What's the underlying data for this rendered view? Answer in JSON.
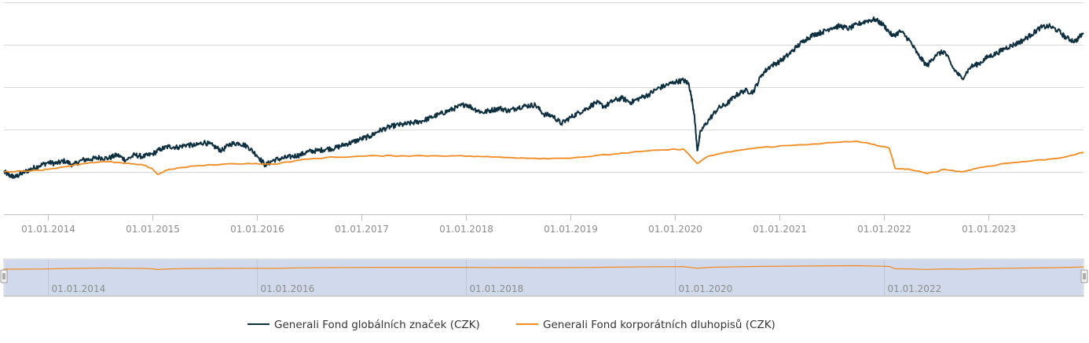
{
  "chart_data": {
    "type": "line",
    "title": "",
    "xlabel": "",
    "ylabel": "",
    "x_ticks": [
      "01.01.2014",
      "01.01.2015",
      "01.01.2016",
      "01.01.2017",
      "01.01.2018",
      "01.01.2019",
      "01.01.2020",
      "01.01.2021",
      "01.01.2022",
      "01.01.2023"
    ],
    "navigator_ticks": [
      "01.01.2014",
      "01.01.2016",
      "01.01.2018",
      "01.01.2020",
      "01.01.2022"
    ],
    "x_range": [
      "2013-08-01",
      "2023-11-30"
    ],
    "ylim": [
      -50,
      200
    ],
    "y_gridlines": [
      -50,
      0,
      50,
      100,
      150,
      200
    ],
    "y_tick_labels_visible": false,
    "legend_position": "bottom-center",
    "series": [
      {
        "name": "Generali Fond globálních značek (CZK)",
        "color": "#0d2f3f",
        "points": [
          [
            "2013-08-01",
            0
          ],
          [
            "2013-08-20",
            -4
          ],
          [
            "2013-09-10",
            -6
          ],
          [
            "2013-10-01",
            -2
          ],
          [
            "2013-11-01",
            3
          ],
          [
            "2013-12-01",
            7
          ],
          [
            "2014-01-01",
            11
          ],
          [
            "2014-02-01",
            10
          ],
          [
            "2014-03-01",
            13
          ],
          [
            "2014-04-01",
            8
          ],
          [
            "2014-05-01",
            14
          ],
          [
            "2014-06-01",
            15
          ],
          [
            "2014-07-01",
            17
          ],
          [
            "2014-08-01",
            16
          ],
          [
            "2014-09-01",
            20
          ],
          [
            "2014-10-01",
            14
          ],
          [
            "2014-11-01",
            20
          ],
          [
            "2014-12-01",
            18
          ],
          [
            "2015-01-01",
            21
          ],
          [
            "2015-02-01",
            27
          ],
          [
            "2015-03-01",
            30
          ],
          [
            "2015-04-01",
            29
          ],
          [
            "2015-05-01",
            32
          ],
          [
            "2015-06-01",
            31
          ],
          [
            "2015-07-01",
            35
          ],
          [
            "2015-08-01",
            31
          ],
          [
            "2015-09-01",
            25
          ],
          [
            "2015-10-01",
            33
          ],
          [
            "2015-11-01",
            34
          ],
          [
            "2015-12-01",
            30
          ],
          [
            "2016-01-01",
            20
          ],
          [
            "2016-02-01",
            8
          ],
          [
            "2016-03-01",
            14
          ],
          [
            "2016-04-01",
            16
          ],
          [
            "2016-05-01",
            18
          ],
          [
            "2016-06-01",
            20
          ],
          [
            "2016-07-01",
            24
          ],
          [
            "2016-08-01",
            25
          ],
          [
            "2016-09-01",
            27
          ],
          [
            "2016-10-01",
            28
          ],
          [
            "2016-11-01",
            32
          ],
          [
            "2016-12-01",
            35
          ],
          [
            "2017-01-01",
            39
          ],
          [
            "2017-02-01",
            42
          ],
          [
            "2017-03-01",
            48
          ],
          [
            "2017-04-01",
            52
          ],
          [
            "2017-05-01",
            55
          ],
          [
            "2017-06-01",
            56
          ],
          [
            "2017-07-01",
            58
          ],
          [
            "2017-08-01",
            60
          ],
          [
            "2017-09-01",
            64
          ],
          [
            "2017-10-01",
            68
          ],
          [
            "2017-11-01",
            72
          ],
          [
            "2017-12-01",
            76
          ],
          [
            "2018-01-01",
            80
          ],
          [
            "2018-02-01",
            74
          ],
          [
            "2018-03-01",
            70
          ],
          [
            "2018-04-01",
            73
          ],
          [
            "2018-05-01",
            75
          ],
          [
            "2018-06-01",
            72
          ],
          [
            "2018-07-01",
            76
          ],
          [
            "2018-08-01",
            78
          ],
          [
            "2018-09-01",
            79
          ],
          [
            "2018-10-01",
            68
          ],
          [
            "2018-11-01",
            66
          ],
          [
            "2018-12-01",
            57
          ],
          [
            "2019-01-01",
            64
          ],
          [
            "2019-02-01",
            70
          ],
          [
            "2019-03-01",
            75
          ],
          [
            "2019-04-01",
            82
          ],
          [
            "2019-05-01",
            77
          ],
          [
            "2019-06-01",
            84
          ],
          [
            "2019-07-01",
            87
          ],
          [
            "2019-08-01",
            82
          ],
          [
            "2019-09-01",
            87
          ],
          [
            "2019-10-01",
            91
          ],
          [
            "2019-11-01",
            98
          ],
          [
            "2019-12-01",
            102
          ],
          [
            "2020-01-01",
            106
          ],
          [
            "2020-02-01",
            108
          ],
          [
            "2020-02-20",
            104
          ],
          [
            "2020-03-10",
            68
          ],
          [
            "2020-03-20",
            25
          ],
          [
            "2020-04-01",
            48
          ],
          [
            "2020-05-01",
            62
          ],
          [
            "2020-06-01",
            75
          ],
          [
            "2020-07-01",
            80
          ],
          [
            "2020-08-01",
            90
          ],
          [
            "2020-09-01",
            96
          ],
          [
            "2020-10-01",
            94
          ],
          [
            "2020-11-01",
            115
          ],
          [
            "2020-12-01",
            125
          ],
          [
            "2021-01-01",
            130
          ],
          [
            "2021-02-01",
            138
          ],
          [
            "2021-03-01",
            147
          ],
          [
            "2021-04-01",
            156
          ],
          [
            "2021-05-01",
            162
          ],
          [
            "2021-06-01",
            165
          ],
          [
            "2021-07-01",
            170
          ],
          [
            "2021-08-01",
            172
          ],
          [
            "2021-09-01",
            169
          ],
          [
            "2021-10-01",
            174
          ],
          [
            "2021-11-01",
            178
          ],
          [
            "2021-12-01",
            180
          ],
          [
            "2022-01-01",
            173
          ],
          [
            "2022-02-01",
            160
          ],
          [
            "2022-03-01",
            166
          ],
          [
            "2022-04-01",
            155
          ],
          [
            "2022-05-01",
            138
          ],
          [
            "2022-06-01",
            125
          ],
          [
            "2022-07-01",
            138
          ],
          [
            "2022-08-01",
            142
          ],
          [
            "2022-09-01",
            122
          ],
          [
            "2022-10-01",
            110
          ],
          [
            "2022-11-01",
            124
          ],
          [
            "2022-12-01",
            128
          ],
          [
            "2023-01-01",
            136
          ],
          [
            "2023-02-01",
            140
          ],
          [
            "2023-03-01",
            146
          ],
          [
            "2023-04-01",
            150
          ],
          [
            "2023-05-01",
            155
          ],
          [
            "2023-06-01",
            162
          ],
          [
            "2023-07-01",
            170
          ],
          [
            "2023-08-01",
            172
          ],
          [
            "2023-09-01",
            167
          ],
          [
            "2023-10-01",
            158
          ],
          [
            "2023-11-01",
            154
          ],
          [
            "2023-11-30",
            164
          ]
        ]
      },
      {
        "name": "Generali Fond korporátních dluhopisů (CZK)",
        "color": "#f28a1e",
        "points": [
          [
            "2013-08-01",
            0
          ],
          [
            "2013-10-01",
            1
          ],
          [
            "2013-12-01",
            2
          ],
          [
            "2014-01-01",
            3
          ],
          [
            "2014-04-01",
            8
          ],
          [
            "2014-06-01",
            11
          ],
          [
            "2014-08-01",
            12
          ],
          [
            "2014-10-01",
            10
          ],
          [
            "2014-12-01",
            8
          ],
          [
            "2015-01-01",
            4
          ],
          [
            "2015-01-20",
            -3
          ],
          [
            "2015-03-01",
            3
          ],
          [
            "2015-06-01",
            7
          ],
          [
            "2015-09-01",
            9
          ],
          [
            "2015-12-01",
            10
          ],
          [
            "2016-03-01",
            9
          ],
          [
            "2016-06-01",
            14
          ],
          [
            "2016-09-01",
            17
          ],
          [
            "2016-12-01",
            18
          ],
          [
            "2017-03-01",
            19
          ],
          [
            "2017-06-01",
            19
          ],
          [
            "2017-09-01",
            19
          ],
          [
            "2017-12-01",
            19
          ],
          [
            "2018-03-01",
            18
          ],
          [
            "2018-06-01",
            17
          ],
          [
            "2018-09-01",
            16
          ],
          [
            "2018-12-01",
            16
          ],
          [
            "2019-03-01",
            18
          ],
          [
            "2019-06-01",
            21
          ],
          [
            "2019-09-01",
            24
          ],
          [
            "2019-12-01",
            26
          ],
          [
            "2020-02-01",
            27
          ],
          [
            "2020-03-20",
            10
          ],
          [
            "2020-05-01",
            19
          ],
          [
            "2020-08-01",
            25
          ],
          [
            "2020-11-01",
            29
          ],
          [
            "2021-02-01",
            31
          ],
          [
            "2021-05-01",
            33
          ],
          [
            "2021-08-01",
            35
          ],
          [
            "2021-10-01",
            36
          ],
          [
            "2021-12-01",
            32
          ],
          [
            "2022-01-20",
            28
          ],
          [
            "2022-02-10",
            4
          ],
          [
            "2022-04-01",
            3
          ],
          [
            "2022-06-01",
            -2
          ],
          [
            "2022-08-01",
            3
          ],
          [
            "2022-10-01",
            0
          ],
          [
            "2022-12-01",
            5
          ],
          [
            "2023-03-01",
            10
          ],
          [
            "2023-06-01",
            13
          ],
          [
            "2023-09-01",
            16
          ],
          [
            "2023-11-30",
            23
          ]
        ]
      }
    ]
  }
}
